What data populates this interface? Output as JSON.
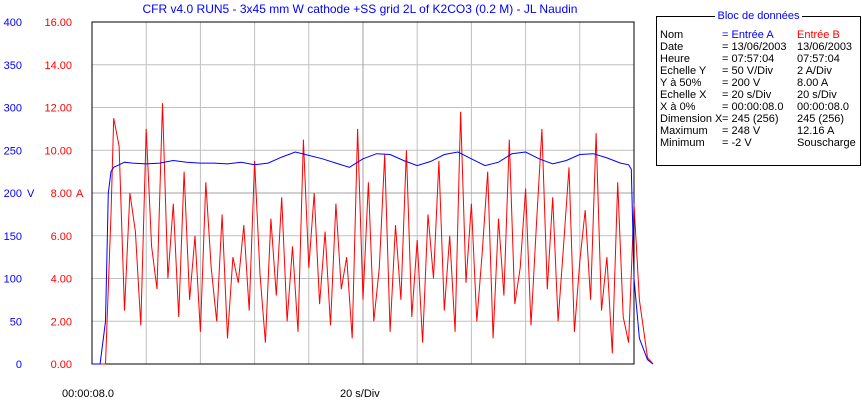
{
  "title": "CFR v4.0 RUN5 - 3x45 mm W cathode +SS grid 2L of K2CO3 (0.2 M) - JL Naudin",
  "colors": {
    "voltage": "#0000ff",
    "current": "#ff0000",
    "grid": "#c0c0c0",
    "plot_border": "#000000"
  },
  "chart_data": {
    "type": "line",
    "title": "CFR v4.0 RUN5 - 3x45 mm W cathode +SS grid 2L of K2CO3 (0.2 M) - JL Naudin",
    "x_start_label": "00:00:08.0",
    "x_scale_label": "20 s/Div",
    "xlim": [
      0,
      200
    ],
    "grid": true,
    "left_axis": {
      "unit": "V",
      "ylim": [
        0,
        400
      ],
      "ticks": [
        "400",
        "350",
        "300",
        "250",
        "200",
        "150",
        "100",
        "50",
        "0"
      ]
    },
    "right_axis": {
      "unit": "A",
      "ylim": [
        0,
        16
      ],
      "ticks": [
        "16.00",
        "14.00",
        "12.00",
        "10.00",
        "8.00",
        "6.00",
        "4.00",
        "2.00",
        "0.00"
      ]
    },
    "series": [
      {
        "axis": "left",
        "x": [
          0,
          3,
          5,
          6,
          7,
          8,
          10,
          12,
          15,
          20,
          25,
          30,
          35,
          40,
          45,
          50,
          55,
          60,
          65,
          70,
          75,
          80,
          85,
          90,
          95,
          100,
          105,
          110,
          115,
          120,
          125,
          130,
          135,
          140,
          145,
          150,
          155,
          160,
          165,
          170,
          175,
          180,
          185,
          190,
          195,
          198,
          199,
          200,
          202,
          205,
          207
        ],
        "y": [
          0,
          0,
          50,
          200,
          225,
          230,
          233,
          236,
          235,
          234,
          235,
          238,
          236,
          235,
          235,
          234,
          236,
          233,
          235,
          242,
          248,
          244,
          240,
          235,
          230,
          240,
          246,
          245,
          238,
          232,
          237,
          245,
          248,
          240,
          232,
          236,
          246,
          248,
          240,
          234,
          238,
          245,
          246,
          241,
          235,
          233,
          228,
          100,
          30,
          5,
          0
        ]
      },
      {
        "axis": "right",
        "x": [
          0,
          5,
          7,
          8,
          10,
          12,
          14,
          16,
          18,
          20,
          22,
          24,
          26,
          28,
          30,
          32,
          34,
          36,
          38,
          40,
          42,
          44,
          46,
          48,
          50,
          52,
          54,
          56,
          58,
          60,
          62,
          64,
          66,
          68,
          70,
          72,
          74,
          76,
          78,
          80,
          82,
          84,
          86,
          88,
          90,
          92,
          94,
          96,
          98,
          100,
          102,
          104,
          106,
          108,
          110,
          112,
          114,
          116,
          118,
          120,
          122,
          124,
          126,
          128,
          130,
          132,
          134,
          136,
          138,
          140,
          142,
          144,
          146,
          148,
          150,
          152,
          154,
          156,
          158,
          160,
          162,
          164,
          166,
          168,
          170,
          172,
          174,
          176,
          178,
          180,
          182,
          184,
          186,
          188,
          190,
          192,
          194,
          196,
          198,
          200,
          202,
          205,
          207
        ],
        "y": [
          0,
          0,
          7.0,
          11.5,
          10.2,
          2.5,
          8.0,
          6.2,
          1.8,
          11.0,
          5.5,
          3.5,
          12.2,
          4.0,
          7.5,
          2.2,
          9.0,
          3.0,
          6.0,
          1.5,
          8.5,
          4.5,
          2.0,
          7.0,
          1.2,
          5.0,
          3.8,
          6.5,
          2.5,
          9.5,
          4.2,
          1.0,
          6.8,
          3.2,
          7.8,
          2.0,
          5.5,
          1.5,
          10.5,
          4.5,
          8.0,
          2.8,
          6.2,
          1.8,
          7.5,
          3.5,
          5.0,
          1.2,
          11.0,
          3.0,
          8.5,
          2.0,
          4.5,
          9.8,
          1.5,
          6.5,
          3.0,
          10.0,
          2.2,
          5.8,
          1.0,
          7.0,
          4.0,
          9.5,
          2.5,
          6.0,
          1.5,
          11.8,
          3.8,
          7.5,
          2.0,
          5.2,
          9.0,
          1.2,
          6.8,
          3.2,
          10.5,
          2.8,
          4.5,
          8.2,
          1.8,
          6.5,
          11.0,
          3.5,
          7.8,
          2.0,
          5.5,
          9.2,
          1.5,
          4.8,
          7.2,
          3.0,
          10.8,
          2.5,
          5.0,
          0.5,
          8.5,
          2.2,
          1.0,
          7.5,
          3.0,
          0.3,
          0
        ]
      }
    ]
  },
  "info_panel": {
    "title": "Bloc de données",
    "header": {
      "label": "Nom",
      "a": "= Entrée A",
      "b": "Entrée B"
    },
    "rows": [
      {
        "label": "Date",
        "a": "= 13/06/2003",
        "b": "13/06/2003"
      },
      {
        "label": "Heure",
        "a": "= 07:57:04",
        "b": "07:57:04"
      },
      {
        "label": "Echelle Y",
        "a": "=    50 V/Div",
        "b": "2      A/Div"
      },
      {
        "label": "Y à 50%",
        "a": "=  200 V",
        "b": "   8.00 A"
      },
      {
        "label": "Echelle X",
        "a": "=   20 s/Div",
        "b": "20     s/Div"
      },
      {
        "label": "X à 0%",
        "a": "= 00:00:08.0",
        "b": "00:00:08.0"
      },
      {
        "label": "Dimension X",
        "a": "= 245 (256)",
        "b": "245 (256)"
      },
      {
        "label": "Maximum",
        "a": "=  248 V",
        "b": "  12.16 A"
      },
      {
        "label": "Minimum",
        "a": "=     -2 V",
        "b": "Souscharge"
      }
    ]
  }
}
